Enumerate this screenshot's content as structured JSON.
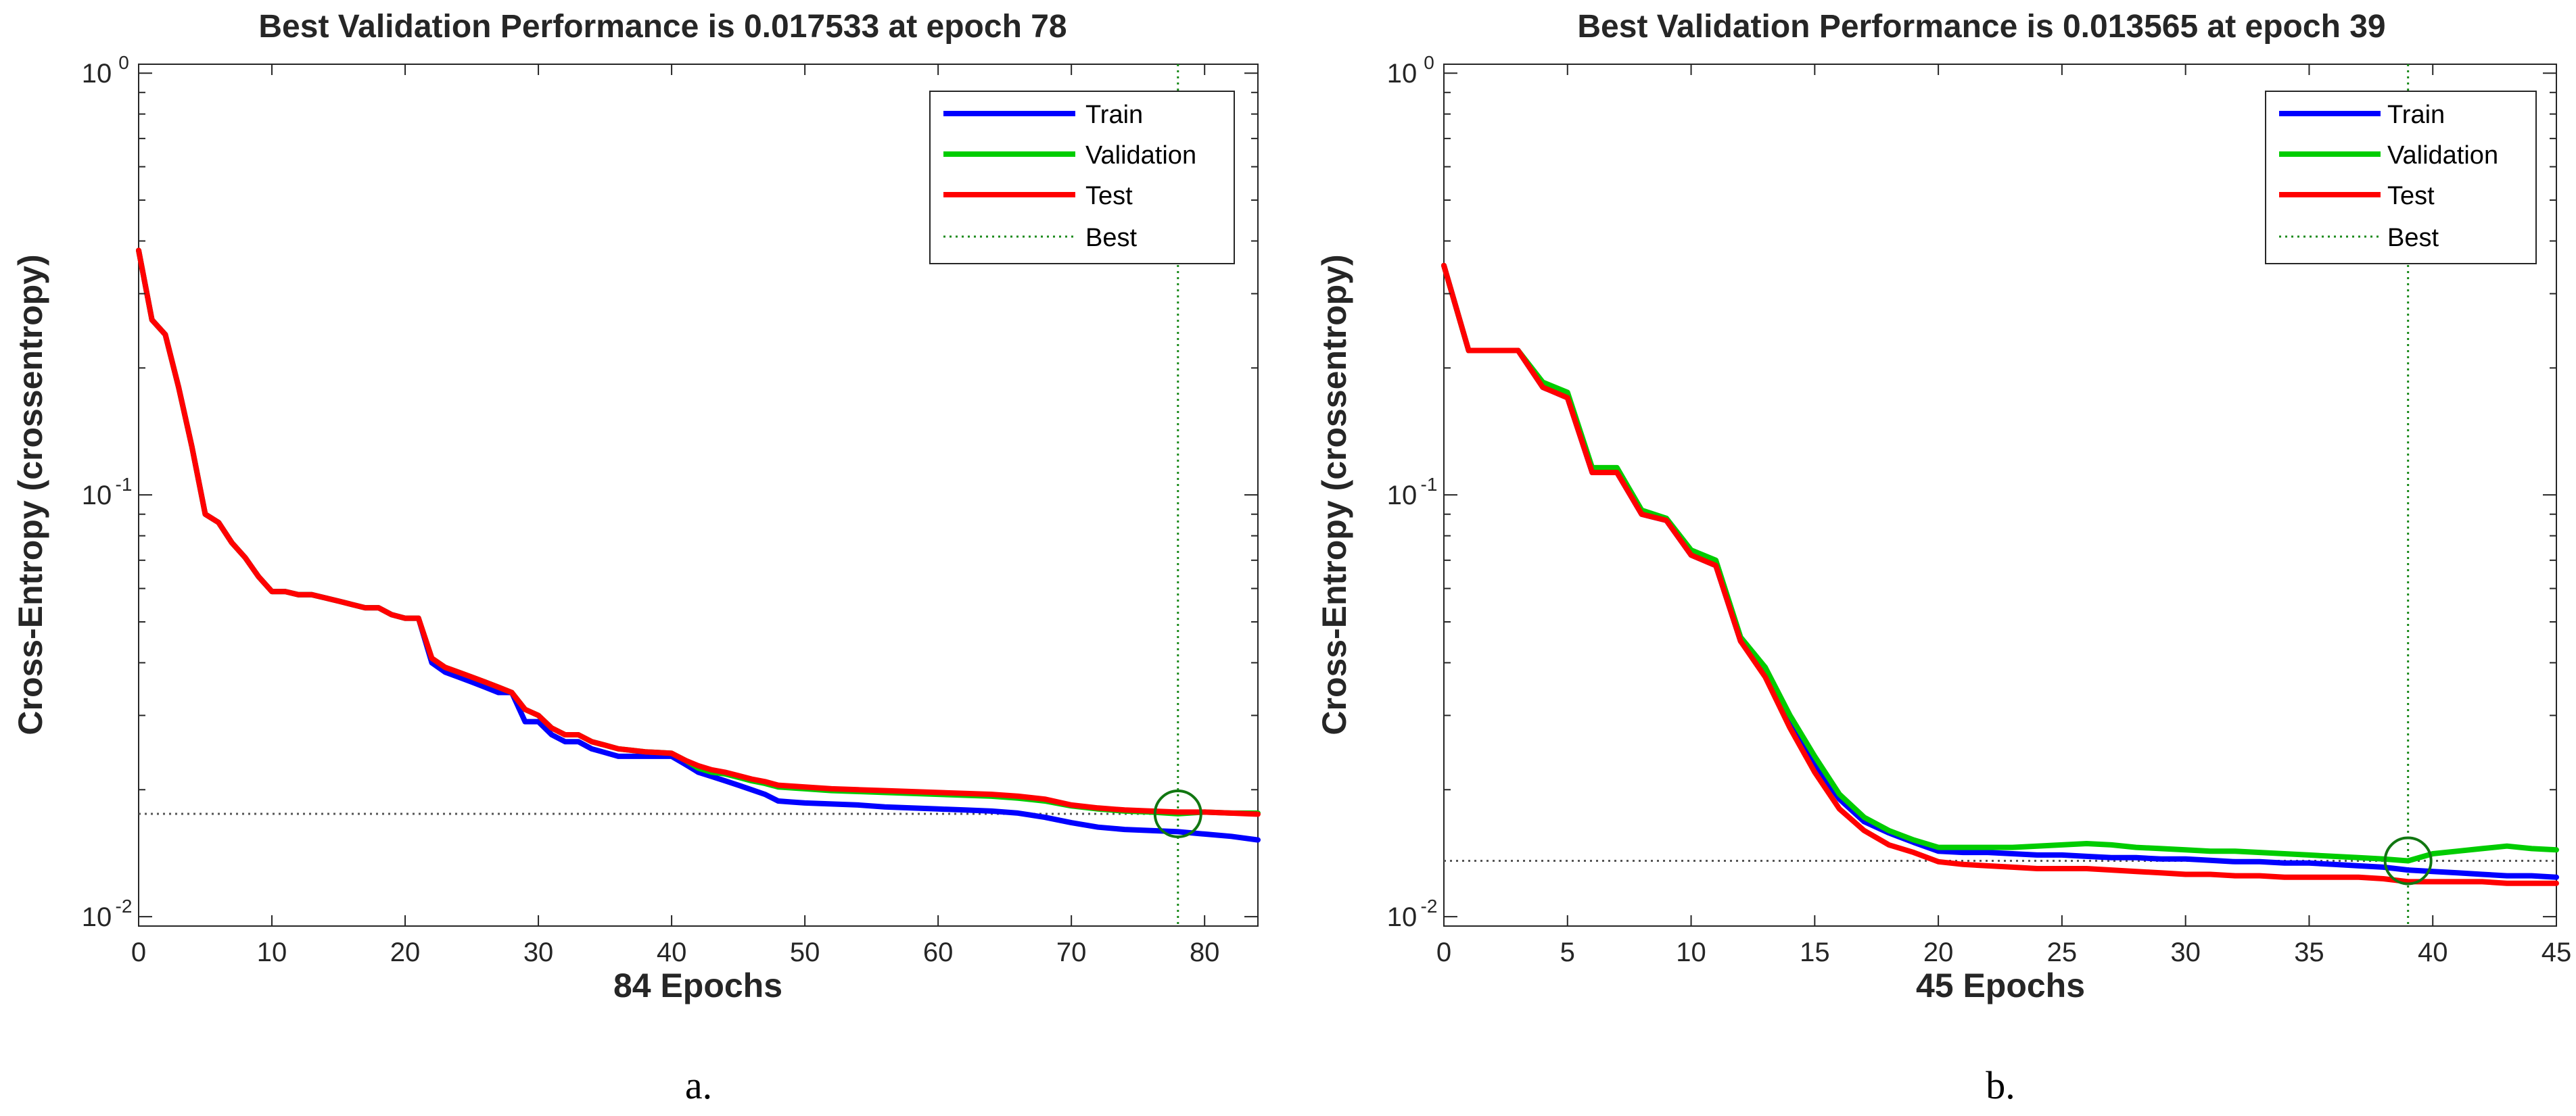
{
  "chart_data": [
    {
      "type": "line",
      "title": "Best Validation Performance is 0.017533 at epoch 78",
      "xlabel": "84 Epochs",
      "ylabel": "Cross-Entropy  (crossentropy)",
      "yscale": "log",
      "xlim": [
        0,
        84
      ],
      "ylim": [
        0.0095,
        1.05
      ],
      "xticks": [
        0,
        10,
        20,
        30,
        40,
        50,
        60,
        70,
        80
      ],
      "yticks": [
        {
          "value": 1,
          "base": "10",
          "exp": "0"
        },
        {
          "value": 0.1,
          "base": "10",
          "exp": "-1"
        },
        {
          "value": 0.01,
          "base": "10",
          "exp": "-2"
        }
      ],
      "best": {
        "epoch": 78,
        "value": 0.017533
      },
      "caption": "a.",
      "legend": [
        "Train",
        "Validation",
        "Test",
        "Best"
      ],
      "series": [
        {
          "name": "Train",
          "color": "#0000ff",
          "x": [
            0,
            1,
            2,
            3,
            4,
            5,
            6,
            7,
            8,
            9,
            10,
            11,
            12,
            13,
            14,
            15,
            16,
            17,
            18,
            19,
            20,
            21,
            22,
            23,
            24,
            25,
            26,
            27,
            28,
            29,
            30,
            31,
            32,
            33,
            34,
            35,
            36,
            37,
            38,
            39,
            40,
            41,
            42,
            43,
            44,
            45,
            46,
            47,
            48,
            49,
            50,
            52,
            54,
            56,
            58,
            60,
            62,
            64,
            66,
            68,
            70,
            72,
            74,
            76,
            78,
            80,
            82,
            84
          ],
          "y": [
            0.38,
            0.26,
            0.24,
            0.18,
            0.13,
            0.09,
            0.086,
            0.077,
            0.071,
            0.064,
            0.059,
            0.059,
            0.058,
            0.058,
            0.057,
            0.056,
            0.055,
            0.054,
            0.054,
            0.052,
            0.051,
            0.051,
            0.04,
            0.038,
            0.037,
            0.036,
            0.035,
            0.034,
            0.034,
            0.029,
            0.029,
            0.027,
            0.026,
            0.026,
            0.025,
            0.0245,
            0.024,
            0.024,
            0.024,
            0.024,
            0.024,
            0.023,
            0.022,
            0.0215,
            0.021,
            0.0205,
            0.02,
            0.0195,
            0.0188,
            0.0187,
            0.0186,
            0.0185,
            0.0184,
            0.0182,
            0.0181,
            0.018,
            0.0179,
            0.0178,
            0.0176,
            0.0172,
            0.0167,
            0.0163,
            0.0161,
            0.016,
            0.0159,
            0.0157,
            0.0155,
            0.0152
          ]
        },
        {
          "name": "Validation",
          "color": "#00cc00",
          "x": [
            0,
            1,
            2,
            3,
            4,
            5,
            6,
            7,
            8,
            9,
            10,
            11,
            12,
            13,
            14,
            15,
            16,
            17,
            18,
            19,
            20,
            21,
            22,
            23,
            24,
            25,
            26,
            27,
            28,
            29,
            30,
            31,
            32,
            33,
            34,
            35,
            36,
            37,
            38,
            39,
            40,
            41,
            42,
            43,
            44,
            45,
            46,
            47,
            48,
            50,
            52,
            54,
            56,
            58,
            60,
            62,
            64,
            66,
            68,
            70,
            72,
            74,
            76,
            78,
            80,
            82,
            84
          ],
          "y": [
            0.38,
            0.26,
            0.24,
            0.18,
            0.13,
            0.09,
            0.086,
            0.077,
            0.071,
            0.064,
            0.059,
            0.059,
            0.058,
            0.058,
            0.057,
            0.056,
            0.055,
            0.054,
            0.054,
            0.052,
            0.051,
            0.051,
            0.041,
            0.039,
            0.038,
            0.037,
            0.036,
            0.035,
            0.034,
            0.031,
            0.03,
            0.028,
            0.027,
            0.027,
            0.026,
            0.0255,
            0.025,
            0.0248,
            0.0246,
            0.0245,
            0.0244,
            0.0235,
            0.0225,
            0.022,
            0.0218,
            0.0214,
            0.021,
            0.0207,
            0.0203,
            0.0201,
            0.0199,
            0.0198,
            0.0197,
            0.0196,
            0.0195,
            0.0194,
            0.0193,
            0.0191,
            0.0188,
            0.0183,
            0.018,
            0.0178,
            0.0177,
            0.017533,
            0.0177,
            0.0176,
            0.0176
          ]
        },
        {
          "name": "Test",
          "color": "#ff0000",
          "x": [
            0,
            1,
            2,
            3,
            4,
            5,
            6,
            7,
            8,
            9,
            10,
            11,
            12,
            13,
            14,
            15,
            16,
            17,
            18,
            19,
            20,
            21,
            22,
            23,
            24,
            25,
            26,
            27,
            28,
            29,
            30,
            31,
            32,
            33,
            34,
            35,
            36,
            37,
            38,
            39,
            40,
            41,
            42,
            43,
            44,
            45,
            46,
            47,
            48,
            50,
            52,
            54,
            56,
            58,
            60,
            62,
            64,
            66,
            68,
            70,
            72,
            74,
            76,
            78,
            80,
            82,
            84
          ],
          "y": [
            0.38,
            0.26,
            0.24,
            0.18,
            0.13,
            0.09,
            0.086,
            0.077,
            0.071,
            0.064,
            0.059,
            0.059,
            0.058,
            0.058,
            0.057,
            0.056,
            0.055,
            0.054,
            0.054,
            0.052,
            0.051,
            0.051,
            0.041,
            0.039,
            0.038,
            0.037,
            0.036,
            0.035,
            0.034,
            0.031,
            0.03,
            0.028,
            0.027,
            0.027,
            0.026,
            0.0255,
            0.025,
            0.0248,
            0.0246,
            0.0245,
            0.0244,
            0.0235,
            0.0228,
            0.0223,
            0.022,
            0.0216,
            0.0212,
            0.0209,
            0.0205,
            0.0203,
            0.0201,
            0.02,
            0.0199,
            0.0198,
            0.0197,
            0.0196,
            0.0195,
            0.0193,
            0.019,
            0.0184,
            0.0181,
            0.0179,
            0.0178,
            0.0177,
            0.0177,
            0.0176,
            0.0175
          ]
        }
      ]
    },
    {
      "type": "line",
      "title": "Best Validation Performance is 0.013565 at epoch 39",
      "xlabel": "45 Epochs",
      "ylabel": "Cross-Entropy  (crossentropy)",
      "yscale": "log",
      "xlim": [
        0,
        45
      ],
      "ylim": [
        0.0095,
        1.05
      ],
      "xticks": [
        0,
        5,
        10,
        15,
        20,
        25,
        30,
        35,
        40,
        45
      ],
      "yticks": [
        {
          "value": 1,
          "base": "10",
          "exp": "0"
        },
        {
          "value": 0.1,
          "base": "10",
          "exp": "-1"
        },
        {
          "value": 0.01,
          "base": "10",
          "exp": "-2"
        }
      ],
      "best": {
        "epoch": 39,
        "value": 0.013565
      },
      "caption": "b.",
      "legend": [
        "Train",
        "Validation",
        "Test",
        "Best"
      ],
      "series": [
        {
          "name": "Train",
          "color": "#0000ff",
          "x": [
            0,
            1,
            2,
            3,
            4,
            5,
            6,
            7,
            8,
            9,
            10,
            11,
            12,
            13,
            14,
            15,
            16,
            17,
            18,
            19,
            20,
            21,
            22,
            23,
            24,
            25,
            26,
            27,
            28,
            29,
            30,
            31,
            32,
            33,
            34,
            35,
            36,
            37,
            38,
            39,
            40,
            41,
            42,
            43,
            44,
            45
          ],
          "y": [
            0.35,
            0.22,
            0.22,
            0.22,
            0.18,
            0.17,
            0.113,
            0.113,
            0.09,
            0.087,
            0.072,
            0.068,
            0.045,
            0.038,
            0.029,
            0.023,
            0.019,
            0.0168,
            0.0158,
            0.015,
            0.0143,
            0.0142,
            0.0142,
            0.0141,
            0.014,
            0.014,
            0.0139,
            0.0138,
            0.0138,
            0.0137,
            0.0137,
            0.0136,
            0.0135,
            0.0135,
            0.0134,
            0.0134,
            0.0133,
            0.0132,
            0.0131,
            0.0129,
            0.0128,
            0.0127,
            0.0126,
            0.0125,
            0.0125,
            0.0124
          ]
        },
        {
          "name": "Validation",
          "color": "#00cc00",
          "x": [
            0,
            1,
            2,
            3,
            4,
            5,
            6,
            7,
            8,
            9,
            10,
            11,
            12,
            13,
            14,
            15,
            16,
            17,
            18,
            19,
            20,
            21,
            22,
            23,
            24,
            25,
            26,
            27,
            28,
            29,
            30,
            31,
            32,
            33,
            34,
            35,
            36,
            37,
            38,
            39,
            40,
            41,
            42,
            43,
            44,
            45
          ],
          "y": [
            0.35,
            0.22,
            0.22,
            0.22,
            0.185,
            0.175,
            0.116,
            0.116,
            0.092,
            0.088,
            0.074,
            0.07,
            0.046,
            0.039,
            0.03,
            0.024,
            0.0195,
            0.0172,
            0.016,
            0.0152,
            0.0146,
            0.0146,
            0.0146,
            0.0146,
            0.0147,
            0.0148,
            0.0149,
            0.0148,
            0.0146,
            0.0145,
            0.0144,
            0.0143,
            0.0143,
            0.0142,
            0.0141,
            0.014,
            0.0139,
            0.0138,
            0.0137,
            0.013565,
            0.0141,
            0.0143,
            0.0145,
            0.0147,
            0.0145,
            0.0144
          ]
        },
        {
          "name": "Test",
          "color": "#ff0000",
          "x": [
            0,
            1,
            2,
            3,
            4,
            5,
            6,
            7,
            8,
            9,
            10,
            11,
            12,
            13,
            14,
            15,
            16,
            17,
            18,
            19,
            20,
            21,
            22,
            23,
            24,
            25,
            26,
            27,
            28,
            29,
            30,
            31,
            32,
            33,
            34,
            35,
            36,
            37,
            38,
            39,
            40,
            41,
            42,
            43,
            44,
            45
          ],
          "y": [
            0.35,
            0.22,
            0.22,
            0.22,
            0.18,
            0.17,
            0.113,
            0.113,
            0.09,
            0.087,
            0.072,
            0.068,
            0.045,
            0.037,
            0.028,
            0.022,
            0.018,
            0.016,
            0.0148,
            0.0142,
            0.0135,
            0.0133,
            0.0132,
            0.0131,
            0.013,
            0.013,
            0.013,
            0.0129,
            0.0128,
            0.0127,
            0.0126,
            0.0126,
            0.0125,
            0.0125,
            0.0124,
            0.0124,
            0.0124,
            0.0124,
            0.0123,
            0.0121,
            0.0121,
            0.0121,
            0.0121,
            0.012,
            0.012,
            0.012
          ]
        }
      ]
    }
  ]
}
